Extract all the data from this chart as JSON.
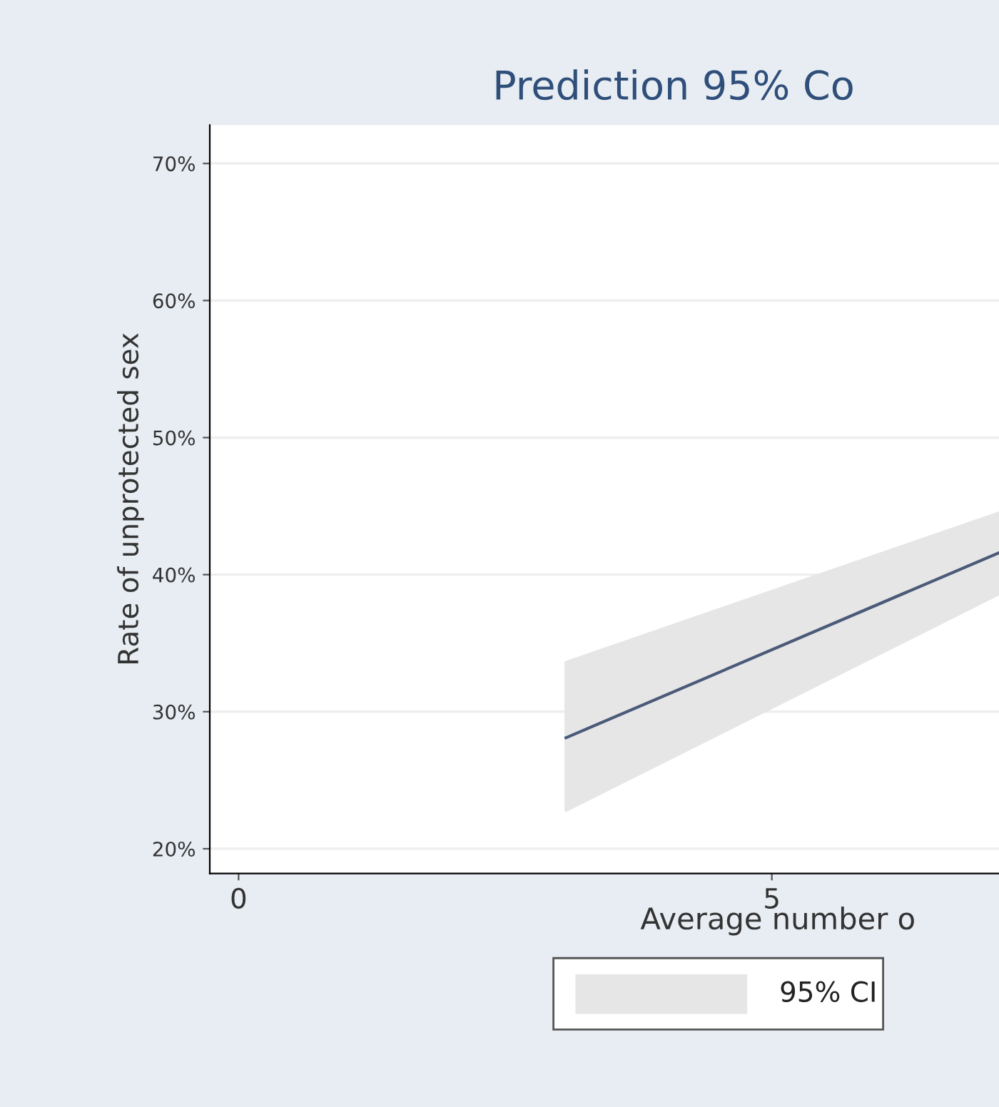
{
  "chart_data": {
    "type": "line",
    "title": "Prediction 95% Co",
    "xlabel": "Average number o",
    "ylabel": "Rate of unprotected sex",
    "x": [
      3.07,
      7.13
    ],
    "series": [
      {
        "color": "#4a5a78",
        "values": [
          28.1,
          41.6
        ],
        "lower": [
          22.8,
          38.6
        ],
        "upper": [
          33.6,
          44.5
        ]
      }
    ],
    "annotations": [
      "95% CI"
    ],
    "xlim": [
      -0.27,
      7.13
    ],
    "ylim": [
      18.2,
      72.8
    ],
    "xticks": [
      0,
      5
    ],
    "yticks": [
      {
        "value": 20,
        "label": "20%"
      },
      {
        "value": 30,
        "label": "30%"
      },
      {
        "value": 40,
        "label": "40%"
      },
      {
        "value": 50,
        "label": "50%"
      },
      {
        "value": 60,
        "label": "60%"
      },
      {
        "value": 70,
        "label": "70%"
      }
    ],
    "grid": "y",
    "marker": "none",
    "line_style": "solid"
  }
}
